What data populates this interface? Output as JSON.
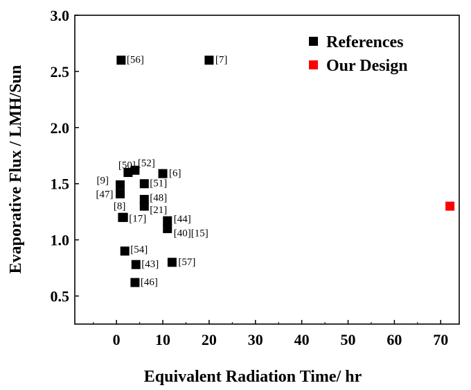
{
  "chart_data": {
    "type": "scatter",
    "xlabel": "Equivalent Radiation Time/ hr",
    "ylabel": "Evaporative Flux / LMH/Sun",
    "xlim": [
      -9,
      74
    ],
    "ylim": [
      0.25,
      3.0
    ],
    "xticks": [
      0,
      10,
      20,
      30,
      40,
      50,
      60,
      70
    ],
    "yticks": [
      0.5,
      1.0,
      1.5,
      2.0,
      2.5,
      3.0
    ],
    "ytick_labels": [
      "0.5",
      "1.0",
      "1.5",
      "2.0",
      "2.5",
      "3.0"
    ],
    "grid": false,
    "legend_position": "top-right",
    "series": [
      {
        "name": "References",
        "color": "#000000",
        "marker": "square",
        "points": [
          {
            "x": 1,
            "y": 2.6,
            "label": "[56]"
          },
          {
            "x": 20,
            "y": 2.6,
            "label": "[7]"
          },
          {
            "x": 2.5,
            "y": 1.6,
            "label": "[50]"
          },
          {
            "x": 4,
            "y": 1.62,
            "label": "[52]"
          },
          {
            "x": 10,
            "y": 1.59,
            "label": "[6]"
          },
          {
            "x": 0.8,
            "y": 1.49,
            "label": "[9]"
          },
          {
            "x": 0.8,
            "y": 1.41,
            "label": "[47]"
          },
          {
            "x": 6,
            "y": 1.5,
            "label": "[51]"
          },
          {
            "x": 6,
            "y": 1.36,
            "label": "[48]"
          },
          {
            "x": 6,
            "y": 1.3,
            "label": "[21]"
          },
          {
            "x": 1.3,
            "y": 1.2,
            "label": "[8]"
          },
          {
            "x": 1.5,
            "y": 1.2,
            "label": "[17]"
          },
          {
            "x": 11,
            "y": 1.17,
            "label": "[44]"
          },
          {
            "x": 11,
            "y": 1.1,
            "label": "[40][15]"
          },
          {
            "x": 1.8,
            "y": 0.9,
            "label": "[54]"
          },
          {
            "x": 4.2,
            "y": 0.78,
            "label": "[43]"
          },
          {
            "x": 12,
            "y": 0.8,
            "label": "[57]"
          },
          {
            "x": 4,
            "y": 0.62,
            "label": "[46]"
          }
        ]
      },
      {
        "name": "Our Design",
        "color": "#ff0000",
        "marker": "square",
        "points": [
          {
            "x": 72,
            "y": 1.3
          }
        ]
      }
    ]
  }
}
